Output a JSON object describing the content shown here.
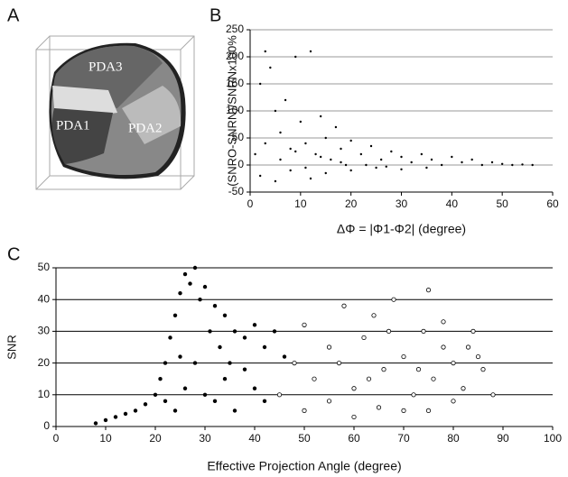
{
  "panel_a": {
    "panel_label": "A",
    "regions": [
      "PDA3",
      "PDA1",
      "PDA2"
    ]
  },
  "chart_data": [
    {
      "type": "scatter",
      "panel_label": "B",
      "x_label": "ΔΦ = |Φ1-Φ2|  (degree)",
      "y_label": "(SNRO-SNRN)/SNRNx100%",
      "xlim": [
        0,
        60
      ],
      "xticks": [
        0,
        10,
        20,
        30,
        40,
        50,
        60
      ],
      "ylim": [
        -50,
        250
      ],
      "yticks": [
        -50,
        0,
        50,
        100,
        150,
        200,
        250
      ],
      "grid": true,
      "grid_color": "#999999",
      "series": [
        {
          "color": "#000000",
          "marker": "filled",
          "x": [
            1,
            2,
            3,
            4,
            5,
            6,
            7,
            8,
            9,
            10,
            11,
            12,
            13,
            14,
            15,
            16,
            17,
            18,
            19,
            20,
            22,
            24,
            26,
            28,
            30,
            32,
            34,
            36,
            38,
            40,
            42,
            44,
            46,
            48,
            50,
            52,
            54,
            56,
            2,
            5,
            8,
            12,
            15,
            20,
            25,
            30,
            35,
            3,
            6,
            9,
            11,
            14,
            18,
            23,
            27
          ],
          "y": [
            20,
            150,
            210,
            180,
            100,
            60,
            120,
            30,
            200,
            80,
            40,
            210,
            20,
            90,
            50,
            10,
            70,
            30,
            0,
            45,
            20,
            35,
            10,
            25,
            15,
            5,
            20,
            10,
            0,
            15,
            5,
            10,
            0,
            5,
            2,
            0,
            1,
            0,
            -20,
            -30,
            -10,
            -25,
            -15,
            -10,
            -5,
            -8,
            -5,
            40,
            10,
            25,
            -5,
            15,
            5,
            0,
            -3
          ]
        }
      ]
    },
    {
      "type": "scatter",
      "panel_label": "C",
      "x_label": "Effective Projection Angle (degree)",
      "y_label": "SNR",
      "xlim": [
        0,
        100
      ],
      "xticks": [
        0,
        10,
        20,
        30,
        40,
        50,
        60,
        70,
        80,
        90,
        100
      ],
      "ylim": [
        0,
        50
      ],
      "yticks": [
        0,
        10,
        20,
        30,
        40,
        50
      ],
      "grid": true,
      "grid_color": "#000000",
      "series": [
        {
          "color": "#000000",
          "marker": "filled",
          "x": [
            8,
            10,
            12,
            14,
            16,
            18,
            20,
            21,
            22,
            23,
            24,
            25,
            26,
            27,
            28,
            29,
            30,
            31,
            32,
            33,
            34,
            35,
            36,
            38,
            40,
            42,
            24,
            26,
            28,
            30,
            32,
            34,
            36,
            38,
            40,
            42,
            44,
            46,
            22,
            25
          ],
          "y": [
            1,
            2,
            3,
            4,
            5,
            7,
            10,
            15,
            20,
            28,
            35,
            42,
            48,
            45,
            50,
            40,
            44,
            30,
            38,
            25,
            35,
            20,
            30,
            28,
            32,
            25,
            5,
            12,
            20,
            10,
            8,
            15,
            5,
            18,
            12,
            8,
            30,
            22,
            8,
            22
          ]
        },
        {
          "color": "#000000",
          "marker": "open",
          "x": [
            45,
            48,
            50,
            52,
            55,
            58,
            60,
            62,
            64,
            66,
            68,
            70,
            72,
            74,
            75,
            76,
            78,
            80,
            82,
            84,
            86,
            88,
            50,
            55,
            60,
            65,
            70,
            75,
            80,
            85,
            57,
            63,
            67,
            73,
            78,
            83
          ],
          "y": [
            10,
            20,
            32,
            15,
            25,
            38,
            12,
            28,
            35,
            18,
            40,
            22,
            10,
            30,
            43,
            15,
            25,
            20,
            12,
            30,
            18,
            10,
            5,
            8,
            3,
            6,
            5,
            5,
            8,
            22,
            20,
            15,
            30,
            18,
            33,
            25
          ]
        }
      ]
    }
  ]
}
